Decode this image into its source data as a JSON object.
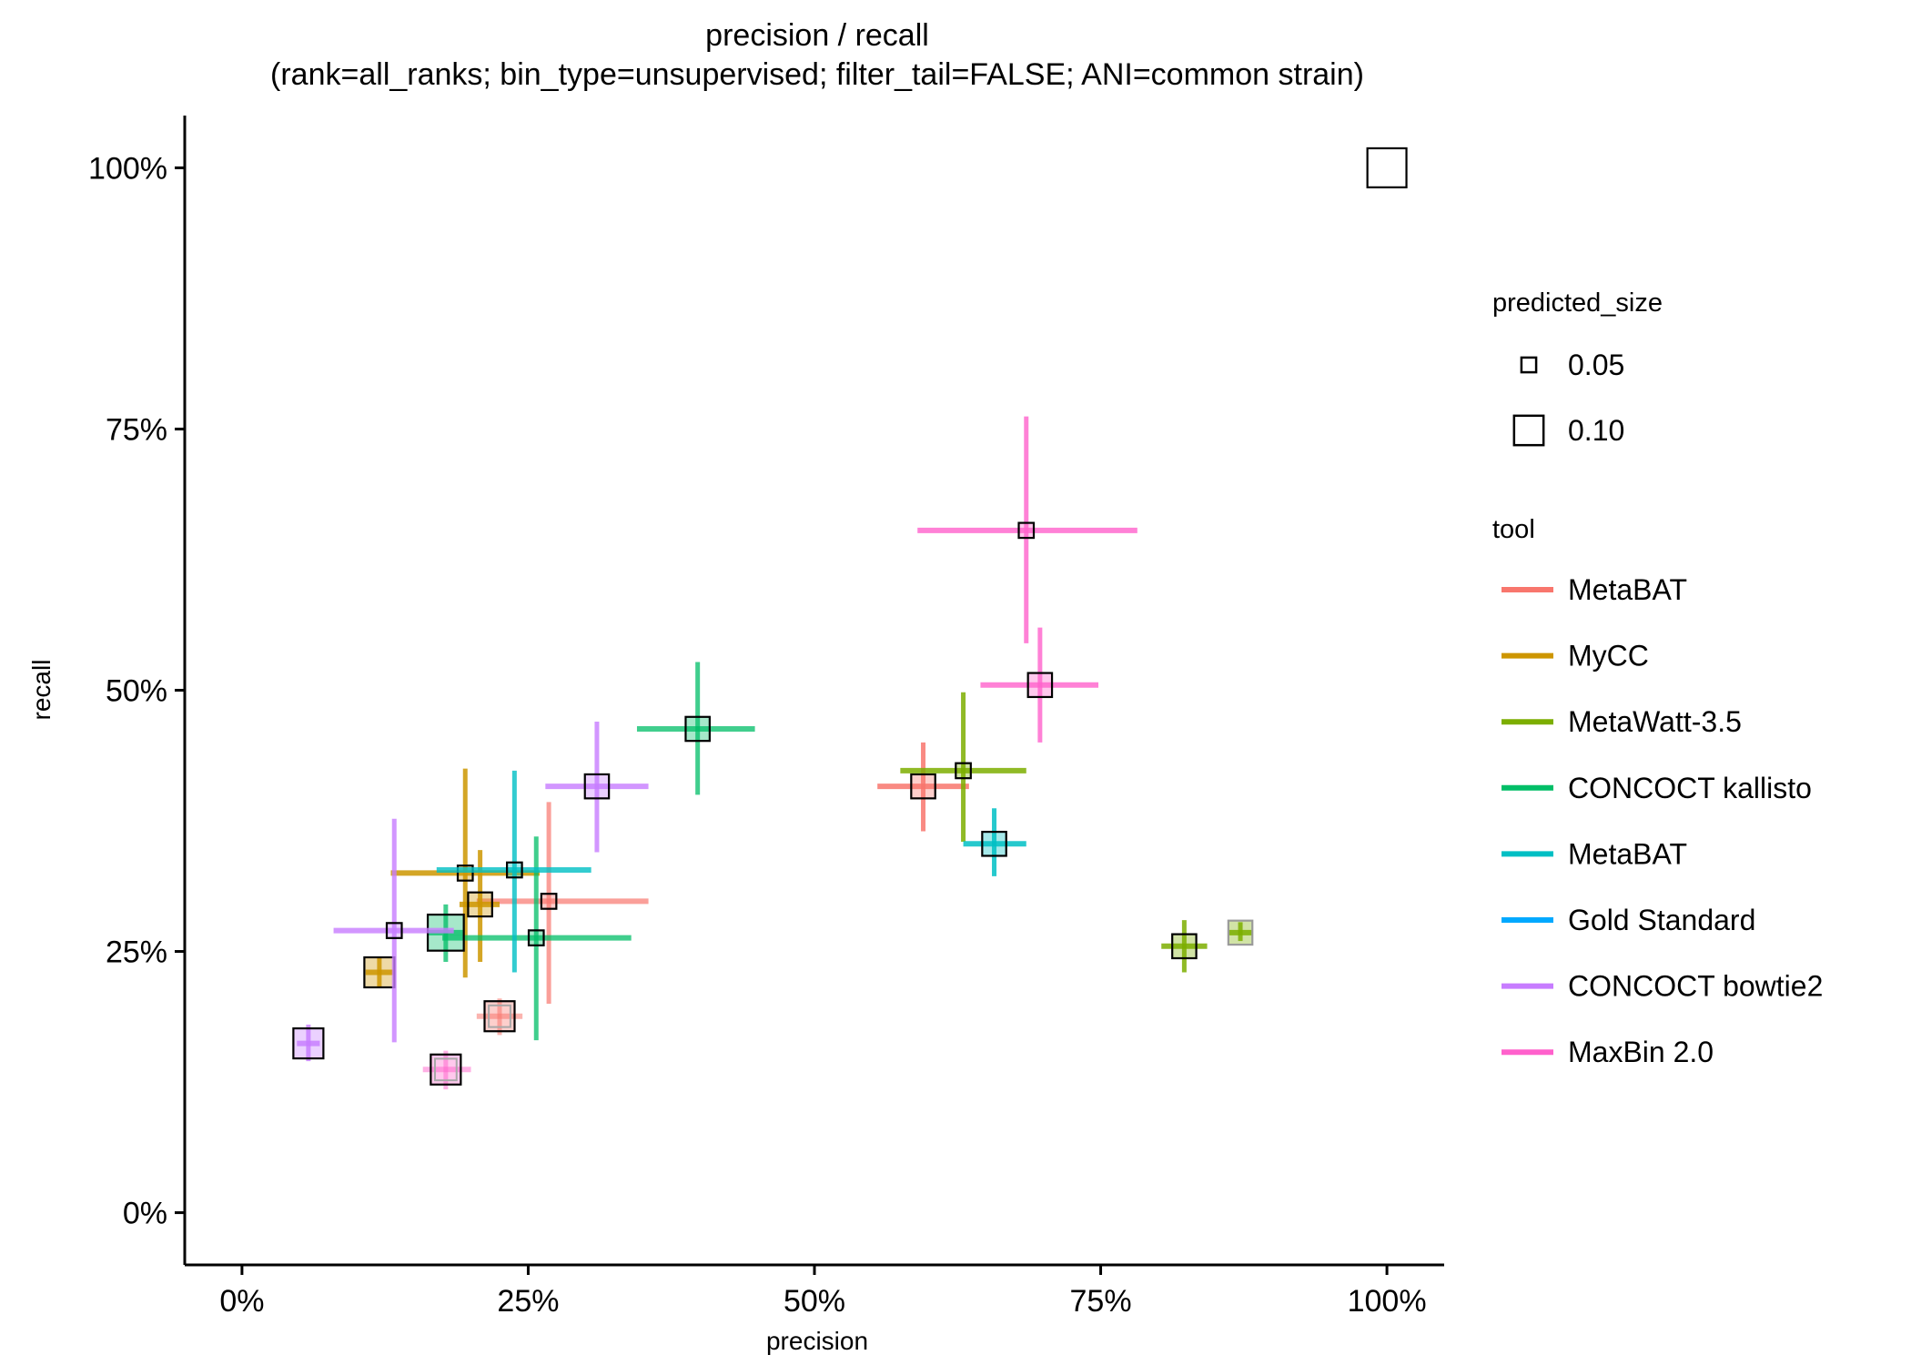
{
  "chart_data": {
    "type": "scatter",
    "title": "precision / recall",
    "subtitle": "(rank=all_ranks; bin_type=unsupervised; filter_tail=FALSE; ANI=common strain)",
    "xlabel": "precision",
    "ylabel": "recall",
    "xlim": [
      -0.05,
      1.05
    ],
    "ylim": [
      -0.05,
      1.05
    ],
    "x_ticks": [
      0,
      0.25,
      0.5,
      0.75,
      1.0
    ],
    "x_tick_labels": [
      "0%",
      "25%",
      "50%",
      "75%",
      "100%"
    ],
    "y_ticks": [
      0,
      0.25,
      0.5,
      0.75,
      1.0
    ],
    "y_tick_labels": [
      "0%",
      "25%",
      "50%",
      "75%",
      "100%"
    ],
    "grid": false,
    "legend_position": "right",
    "size_legend": {
      "title": "predicted_size",
      "entries": [
        {
          "label": "0.05",
          "value": 0.05
        },
        {
          "label": "0.10",
          "value": 0.1
        }
      ]
    },
    "color_legend": {
      "title": "tool",
      "entries": [
        {
          "label": "MetaBAT",
          "color": "#F8766D"
        },
        {
          "label": "MyCC",
          "color": "#CD9600"
        },
        {
          "label": "MetaWatt-3.5",
          "color": "#7CAE00"
        },
        {
          "label": "CONCOCT kallisto",
          "color": "#00BE67"
        },
        {
          "label": "MetaBAT",
          "color": "#00BFC4"
        },
        {
          "label": "Gold Standard",
          "color": "#00A9FF"
        },
        {
          "label": "CONCOCT bowtie2",
          "color": "#C77CFF"
        },
        {
          "label": "MaxBin 2.0",
          "color": "#FF61CC"
        }
      ]
    },
    "series": [
      {
        "color": "#F8766D",
        "points": [
          {
            "x": 0.595,
            "y": 0.408,
            "xerr": [
              0.555,
              0.635
            ],
            "yerr": [
              0.365,
              0.45
            ],
            "size": 0.08,
            "box": "black",
            "alpha": 0.85
          },
          {
            "x": 0.268,
            "y": 0.298,
            "xerr": [
              0.205,
              0.355
            ],
            "yerr": [
              0.2,
              0.393
            ],
            "size": 0.05,
            "box": "black",
            "alpha": 0.7
          },
          {
            "x": 0.225,
            "y": 0.188,
            "xerr": [
              0.205,
              0.245
            ],
            "yerr": [
              0.17,
              0.205
            ],
            "size": 0.1,
            "box": "black",
            "alpha": 0.55,
            "inner_box": true
          }
        ]
      },
      {
        "color": "#CD9600",
        "points": [
          {
            "x": 0.195,
            "y": 0.325,
            "xerr": [
              0.13,
              0.26
            ],
            "yerr": [
              0.225,
              0.425
            ],
            "size": 0.05,
            "box": "black",
            "alpha": 0.85
          },
          {
            "x": 0.208,
            "y": 0.295,
            "xerr": [
              0.19,
              0.225
            ],
            "yerr": [
              0.24,
              0.347
            ],
            "size": 0.08,
            "box": "black",
            "alpha": 0.85
          },
          {
            "x": 0.12,
            "y": 0.23,
            "xerr": [
              0.108,
              0.132
            ],
            "yerr": [
              0.215,
              0.245
            ],
            "size": 0.1,
            "box": "black",
            "alpha": 0.85
          }
        ]
      },
      {
        "color": "#7CAE00",
        "points": [
          {
            "x": 0.63,
            "y": 0.423,
            "xerr": [
              0.575,
              0.685
            ],
            "yerr": [
              0.355,
              0.498
            ],
            "size": 0.05,
            "box": "black",
            "alpha": 0.85
          },
          {
            "x": 0.823,
            "y": 0.255,
            "xerr": [
              0.803,
              0.843
            ],
            "yerr": [
              0.23,
              0.28
            ],
            "size": 0.08,
            "box": "black",
            "alpha": 0.85
          },
          {
            "x": 0.872,
            "y": 0.268,
            "xerr": [
              0.862,
              0.882
            ],
            "yerr": [
              0.26,
              0.278
            ],
            "size": 0.08,
            "box": "grey",
            "alpha": 0.85
          }
        ]
      },
      {
        "color": "#00BE67",
        "points": [
          {
            "x": 0.398,
            "y": 0.463,
            "xerr": [
              0.345,
              0.448
            ],
            "yerr": [
              0.4,
              0.527
            ],
            "size": 0.08,
            "box": "black",
            "alpha": 0.75
          },
          {
            "x": 0.257,
            "y": 0.263,
            "xerr": [
              0.175,
              0.34
            ],
            "yerr": [
              0.165,
              0.36
            ],
            "size": 0.05,
            "box": "black",
            "alpha": 0.75
          },
          {
            "x": 0.178,
            "y": 0.268,
            "xerr": [
              0.163,
              0.193
            ],
            "yerr": [
              0.24,
              0.295
            ],
            "size": 0.12,
            "box": "black",
            "alpha": 0.75
          }
        ]
      },
      {
        "color": "#00BFC4",
        "points": [
          {
            "x": 0.238,
            "y": 0.328,
            "xerr": [
              0.17,
              0.305
            ],
            "yerr": [
              0.23,
              0.423
            ],
            "size": 0.05,
            "box": "black",
            "alpha": 0.8
          },
          {
            "x": 0.657,
            "y": 0.353,
            "xerr": [
              0.63,
              0.685
            ],
            "yerr": [
              0.322,
              0.387
            ],
            "size": 0.08,
            "box": "black",
            "alpha": 0.85
          }
        ]
      },
      {
        "color": "#00A9FF",
        "points": [
          {
            "x": 1.0,
            "y": 1.0,
            "size": 0.13,
            "box": "black",
            "alpha": 0
          }
        ]
      },
      {
        "color": "#C77CFF",
        "points": [
          {
            "x": 0.31,
            "y": 0.408,
            "xerr": [
              0.265,
              0.355
            ],
            "yerr": [
              0.345,
              0.47
            ],
            "size": 0.08,
            "box": "black",
            "alpha": 0.8
          },
          {
            "x": 0.133,
            "y": 0.27,
            "xerr": [
              0.08,
              0.185
            ],
            "yerr": [
              0.163,
              0.377
            ],
            "size": 0.05,
            "box": "black",
            "alpha": 0.8
          },
          {
            "x": 0.058,
            "y": 0.162,
            "xerr": [
              0.048,
              0.068
            ],
            "yerr": [
              0.145,
              0.18
            ],
            "size": 0.1,
            "box": "black",
            "alpha": 0.8
          }
        ]
      },
      {
        "color": "#FF61CC",
        "points": [
          {
            "x": 0.685,
            "y": 0.653,
            "xerr": [
              0.59,
              0.782
            ],
            "yerr": [
              0.545,
              0.762
            ],
            "size": 0.05,
            "box": "black",
            "alpha": 0.8
          },
          {
            "x": 0.697,
            "y": 0.505,
            "xerr": [
              0.645,
              0.748
            ],
            "yerr": [
              0.45,
              0.56
            ],
            "size": 0.08,
            "box": "black",
            "alpha": 0.8
          },
          {
            "x": 0.178,
            "y": 0.137,
            "xerr": [
              0.158,
              0.2
            ],
            "yerr": [
              0.118,
              0.155
            ],
            "size": 0.1,
            "box": "black",
            "alpha": 0.5,
            "inner_box": true
          }
        ]
      }
    ]
  }
}
